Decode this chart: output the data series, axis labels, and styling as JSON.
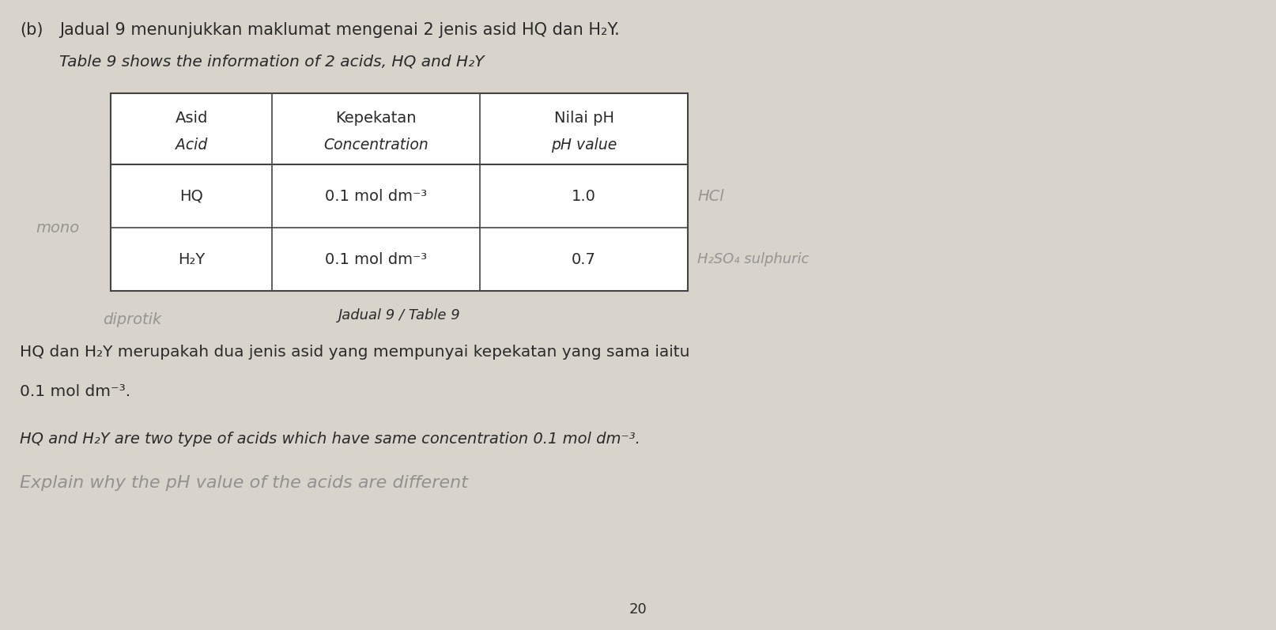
{
  "background_color": "#d8d4cc",
  "paper_color": "#e8e4dc",
  "label_b": "(b)",
  "title_malay": "Jadual 9 menunjukkan maklumat mengenai 2 jenis asid HQ dan H₂Y.",
  "title_english": "Table 9 shows the information of 2 acids, HQ and H₂Y",
  "col_headers": [
    [
      "Asid",
      "Acid"
    ],
    [
      "Kepekatan",
      "Concentration"
    ],
    [
      "Nilai pH",
      "pH value"
    ]
  ],
  "rows": [
    [
      "HQ",
      "0.1 mol dm⁻³",
      "1.0"
    ],
    [
      "H₂Y",
      "0.1 mol dm⁻³",
      "0.7"
    ]
  ],
  "caption": "Jadual 9 / Table 9",
  "paragraph_malay": "HQ dan H₂Y merupakah dua jenis asid yang mempunyai kepekatan yang sama iaitu",
  "paragraph_malay2": "0.1 mol dm⁻³.",
  "paragraph_english": "HQ and H₂Y are two type of acids which have same concentration 0.1 mol dm⁻³.",
  "handwritten_line": "Explain why the pH value of the acids are different",
  "handwritten_left1": "mono",
  "handwritten_right1": "HCl",
  "handwritten_right2": "H₂SO₄ sulphuric",
  "handwritten_bottom": "diprotik",
  "page_number": "20",
  "text_color": "#2a2a2a",
  "hw_color": "#8a8a8a"
}
